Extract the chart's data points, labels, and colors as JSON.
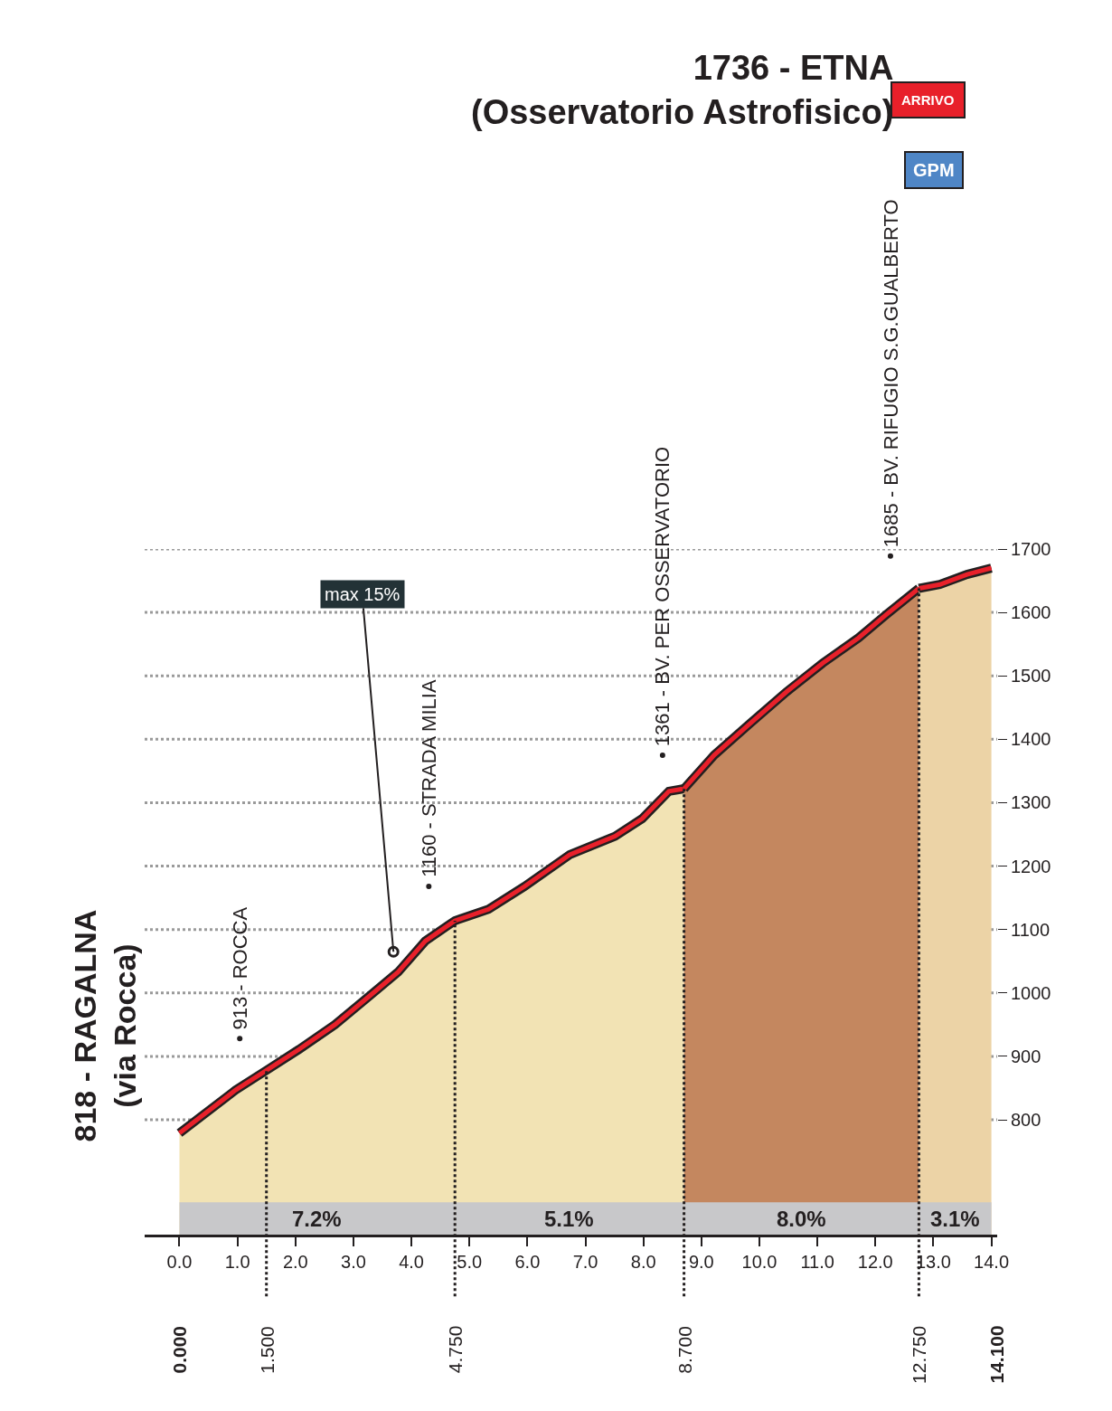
{
  "chart_data": {
    "type": "area",
    "title": "1736 - ETNA\n(Osservatorio Astrofisico)",
    "series": [
      {
        "color": "#f2e3b4",
        "x": [
          0,
          0.97,
          1.5,
          2.06,
          2.68,
          3.3,
          3.77,
          4.24,
          4.75,
          5.33,
          5.95,
          6.73,
          7.51,
          7.98,
          8.44,
          8.7
        ],
        "values": [
          779,
          847,
          878,
          911,
          950,
          997,
          1033,
          1082,
          1114,
          1132,
          1168,
          1218,
          1247,
          1275,
          1318,
          1322
        ]
      },
      {
        "color": "#c4875f",
        "x": [
          8.7,
          9.22,
          9.84,
          10.47,
          11.09,
          11.71,
          12.18,
          12.75
        ],
        "values": [
          1322,
          1375,
          1425,
          1475,
          1520,
          1560,
          1596,
          1638
        ]
      },
      {
        "color": "#ecd3a6",
        "x": [
          12.75,
          13.11,
          13.58,
          14.0
        ],
        "values": [
          1638,
          1644,
          1660,
          1670
        ]
      }
    ],
    "xlim": [
      -0.6,
      14.1
    ],
    "ylim": [
      619,
      1700
    ],
    "xticks": [
      {
        "value": 0,
        "label": "0.0"
      },
      {
        "value": 1,
        "label": "1.0"
      },
      {
        "value": 2,
        "label": "2.0"
      },
      {
        "value": 3,
        "label": "3.0"
      },
      {
        "value": 4,
        "label": "4.0"
      },
      {
        "value": 5,
        "label": "5.0"
      },
      {
        "value": 6,
        "label": "6.0"
      },
      {
        "value": 7,
        "label": "7.0"
      },
      {
        "value": 8,
        "label": "8.0"
      },
      {
        "value": 9,
        "label": "9.0"
      },
      {
        "value": 10,
        "label": "10.0"
      },
      {
        "value": 11,
        "label": "11.0"
      },
      {
        "value": 12,
        "label": "12.0"
      },
      {
        "value": 13,
        "label": "13.0"
      },
      {
        "value": 14,
        "label": "14.0"
      }
    ],
    "yticks": [
      800,
      900,
      1000,
      1100,
      1200,
      1300,
      1400,
      1500,
      1600,
      1700
    ],
    "grid": "y",
    "ref_lines": [
      {
        "axis": "x",
        "value": 1.5,
        "label": "1.500",
        "line_style": "dotted",
        "color": "#231f20"
      },
      {
        "axis": "x",
        "value": 4.75,
        "label": "4.750",
        "line_style": "dotted",
        "color": "#231f20"
      },
      {
        "axis": "x",
        "value": 8.7,
        "label": "8.700",
        "line_style": "dotted",
        "color": "#231f20"
      },
      {
        "axis": "x",
        "value": 12.75,
        "label": "12.750",
        "line_style": "dotted",
        "color": "#231f20"
      }
    ],
    "bands": [
      {
        "axis": "x",
        "from": 0,
        "to": 4.75,
        "label": "7.2%",
        "color": "#c8c8ca"
      },
      {
        "axis": "x",
        "from": 4.75,
        "to": 8.7,
        "label": "5.1%",
        "color": "#c8c8ca"
      },
      {
        "axis": "x",
        "from": 8.7,
        "to": 12.75,
        "label": "8.0%",
        "color": "#c8c8ca"
      },
      {
        "axis": "x",
        "from": 12.75,
        "to": 14.0,
        "label": "3.1%",
        "color": "#c8c8ca"
      }
    ],
    "annotations": [
      "818 - RAGALNA\n(via Rocca)",
      {
        "text": "913 - ROCCA",
        "x": 1.04,
        "y": 928
      },
      {
        "text": "1160 - STRADA MILIA",
        "x": 4.3,
        "y": 1168
      },
      {
        "text": "1361 - BV. PER OSSERVATORIO",
        "x": 8.33,
        "y": 1375
      },
      {
        "text": "1685 - BV. RIFUGIO S.G.GUALBERTO",
        "x": 12.26,
        "y": 1689
      },
      {
        "text": "max 15%",
        "x": 3.69,
        "y": 1065
      },
      "0.000",
      "14.100",
      "ARRIVO",
      "GPM"
    ]
  }
}
